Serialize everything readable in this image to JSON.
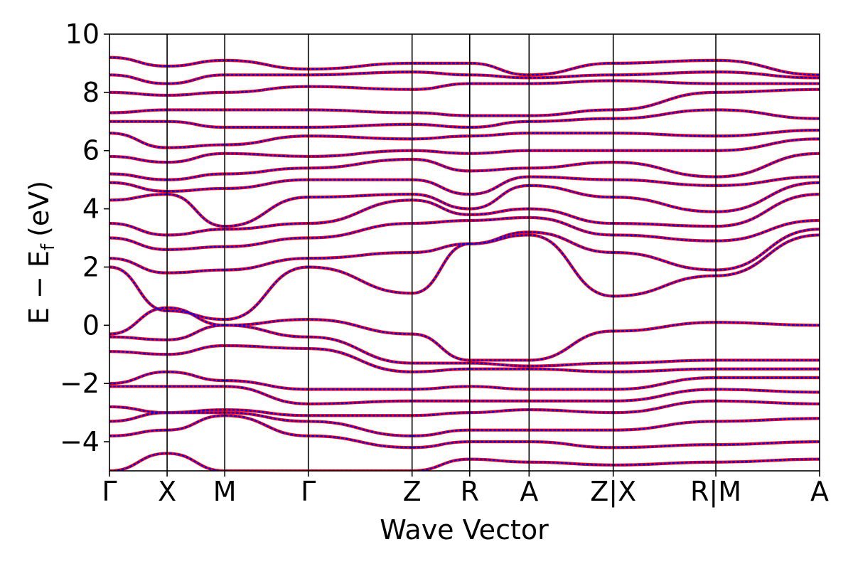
{
  "chart_data": {
    "type": "line",
    "title": "",
    "xlabel": "Wave Vector",
    "ylabel_main": "E − E",
    "ylabel_sub": "f",
    "ylabel_unit": "(eV)",
    "ylim": [
      -5,
      10
    ],
    "yticks": [
      {
        "value": -4,
        "label": "−4"
      },
      {
        "value": -2,
        "label": "−2"
      },
      {
        "value": 0,
        "label": "0"
      },
      {
        "value": 2,
        "label": "2"
      },
      {
        "value": 4,
        "label": "4"
      },
      {
        "value": 6,
        "label": "6"
      },
      {
        "value": 8,
        "label": "8"
      },
      {
        "value": 10,
        "label": "10"
      }
    ],
    "kpoints": [
      {
        "label": "Γ",
        "x": 0.0
      },
      {
        "label": "X",
        "x": 1.0
      },
      {
        "label": "M",
        "x": 2.0
      },
      {
        "label": "Γ",
        "x": 3.45
      },
      {
        "label": "Z",
        "x": 5.25
      },
      {
        "label": "R",
        "x": 6.25
      },
      {
        "label": "A",
        "x": 7.28
      },
      {
        "label": "Z|X",
        "x": 8.74
      },
      {
        "label": "R|M",
        "x": 10.52
      },
      {
        "label": "A",
        "x": 12.32
      }
    ],
    "segment_breaks": [
      8.74,
      10.52
    ],
    "grid": false,
    "series": [
      {
        "color": "#ff0000",
        "style": "solid",
        "values_by_kpoint": [
          [
            -5.0,
            -4.4,
            -5.0,
            -5.0,
            -5.0,
            -4.6,
            -4.7,
            -4.8,
            -4.7,
            -4.6
          ],
          [
            -3.8,
            -3.6,
            -3.1,
            -3.8,
            -4.2,
            -4.0,
            -4.0,
            -4.2,
            -4.1,
            -4.0
          ],
          [
            -3.3,
            -3.0,
            -3.0,
            -3.3,
            -3.8,
            -3.6,
            -3.6,
            -3.6,
            -3.3,
            -3.2
          ],
          [
            -2.8,
            -3.0,
            -2.9,
            -3.1,
            -3.1,
            -3.0,
            -2.9,
            -3.0,
            -2.6,
            -2.7
          ],
          [
            -2.1,
            -2.1,
            -2.1,
            -2.7,
            -2.6,
            -2.6,
            -2.6,
            -2.6,
            -2.2,
            -2.3
          ],
          [
            -2.0,
            -1.6,
            -1.9,
            -2.2,
            -2.2,
            -2.1,
            -2.2,
            -2.2,
            -1.8,
            -1.8
          ],
          [
            -0.9,
            -1.0,
            -0.7,
            -0.8,
            -1.6,
            -1.5,
            -1.5,
            -1.6,
            -1.5,
            -1.5
          ],
          [
            -0.4,
            -0.5,
            0.0,
            -0.4,
            -1.3,
            -1.3,
            -1.4,
            -1.3,
            -1.2,
            -1.2
          ],
          [
            -0.3,
            0.6,
            0.0,
            0.2,
            -0.3,
            -1.2,
            -1.2,
            -0.2,
            0.1,
            0.0
          ],
          [
            2.0,
            0.5,
            0.2,
            2.0,
            1.1,
            2.8,
            3.1,
            1.0,
            1.7,
            3.1
          ],
          [
            2.3,
            1.8,
            1.9,
            2.3,
            2.5,
            2.8,
            3.2,
            2.5,
            1.9,
            3.3
          ],
          [
            3.0,
            2.6,
            2.7,
            3.0,
            3.5,
            3.6,
            3.7,
            3.1,
            2.9,
            3.6
          ],
          [
            3.5,
            3.1,
            3.3,
            3.5,
            4.3,
            3.8,
            4.0,
            3.5,
            3.4,
            4.5
          ],
          [
            4.3,
            4.5,
            3.4,
            4.4,
            4.5,
            4.0,
            4.8,
            4.4,
            3.9,
            4.9
          ],
          [
            4.9,
            4.6,
            4.7,
            5.0,
            5.0,
            4.5,
            5.1,
            5.0,
            4.8,
            5.1
          ],
          [
            5.2,
            5.0,
            5.2,
            5.4,
            5.7,
            5.3,
            5.4,
            5.6,
            5.1,
            5.9
          ],
          [
            5.8,
            5.6,
            5.9,
            5.8,
            6.0,
            5.9,
            6.0,
            6.0,
            6.0,
            6.4
          ],
          [
            6.6,
            6.1,
            6.2,
            6.5,
            6.4,
            6.5,
            6.6,
            6.6,
            6.5,
            6.7
          ],
          [
            7.0,
            7.0,
            6.8,
            6.8,
            6.9,
            6.8,
            7.0,
            7.1,
            7.4,
            7.1
          ],
          [
            7.3,
            7.4,
            7.4,
            7.4,
            7.3,
            7.2,
            7.2,
            7.4,
            8.0,
            8.1
          ],
          [
            8.0,
            7.9,
            8.0,
            8.2,
            8.1,
            8.3,
            8.3,
            8.4,
            8.3,
            8.3
          ],
          [
            8.6,
            8.3,
            8.6,
            8.6,
            8.7,
            8.6,
            8.5,
            8.6,
            8.7,
            8.5
          ],
          [
            9.2,
            8.9,
            9.1,
            8.8,
            9.0,
            9.0,
            8.6,
            9.0,
            9.1,
            8.6
          ]
        ]
      },
      {
        "color": "#0000ff",
        "style": "dashed",
        "values_by_kpoint": "same"
      }
    ]
  }
}
